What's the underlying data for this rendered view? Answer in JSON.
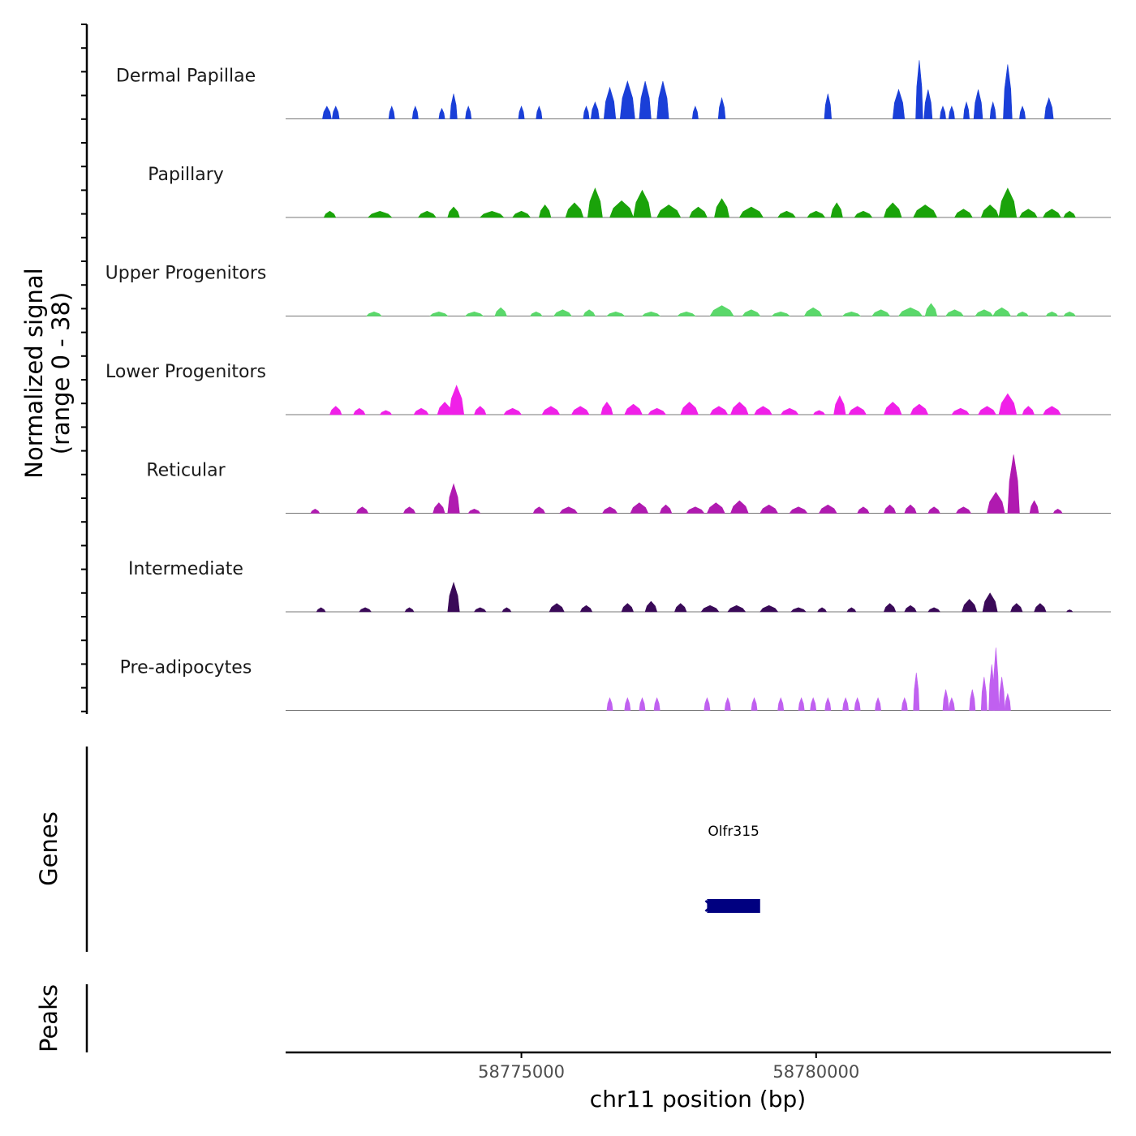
{
  "chart_data": {
    "type": "area",
    "title": "",
    "chromosome": "chr11",
    "xlabel": "chr11 position (bp)",
    "ylabel_line1": "Normalized signal",
    "ylabel_line2": "(range 0 - 38)",
    "ylim": [
      0,
      38
    ],
    "xlim": [
      58771000,
      58785000
    ],
    "x_ticks": [
      58775000,
      58780000
    ],
    "x_tick_labels": [
      "58775000",
      "58780000"
    ],
    "tracks": [
      {
        "name": "Dermal Papillae",
        "color": "#1a3fd8",
        "peaks": [
          [
            58771700,
            150,
            6
          ],
          [
            58771850,
            120,
            6
          ],
          [
            58772800,
            100,
            6
          ],
          [
            58773200,
            100,
            6
          ],
          [
            58773650,
            100,
            5
          ],
          [
            58773850,
            120,
            12
          ],
          [
            58774100,
            100,
            6
          ],
          [
            58775000,
            100,
            6
          ],
          [
            58775300,
            100,
            6
          ],
          [
            58776100,
            100,
            6
          ],
          [
            58776250,
            140,
            8
          ],
          [
            58776500,
            200,
            15
          ],
          [
            58776800,
            250,
            18
          ],
          [
            58777100,
            200,
            18
          ],
          [
            58777400,
            200,
            18
          ],
          [
            58777950,
            100,
            6
          ],
          [
            58778400,
            120,
            10
          ],
          [
            58780200,
            120,
            12
          ],
          [
            58781400,
            200,
            14
          ],
          [
            58781750,
            120,
            28
          ],
          [
            58781900,
            140,
            14
          ],
          [
            58782150,
            100,
            6
          ],
          [
            58782300,
            100,
            6
          ],
          [
            58782550,
            100,
            8
          ],
          [
            58782750,
            150,
            14
          ],
          [
            58783000,
            100,
            8
          ],
          [
            58783250,
            150,
            26
          ],
          [
            58783500,
            100,
            6
          ],
          [
            58783950,
            150,
            10
          ]
        ]
      },
      {
        "name": "Papillary",
        "color": "#1aa30a",
        "peaks": [
          [
            58771750,
            200,
            3
          ],
          [
            58772600,
            400,
            3
          ],
          [
            58773400,
            300,
            3
          ],
          [
            58773850,
            200,
            5
          ],
          [
            58774500,
            400,
            3
          ],
          [
            58775000,
            300,
            3
          ],
          [
            58775400,
            200,
            6
          ],
          [
            58775900,
            300,
            7
          ],
          [
            58776250,
            250,
            14
          ],
          [
            58776700,
            400,
            8
          ],
          [
            58777050,
            300,
            13
          ],
          [
            58777500,
            400,
            6
          ],
          [
            58778000,
            300,
            5
          ],
          [
            58778400,
            250,
            9
          ],
          [
            58778900,
            400,
            5
          ],
          [
            58779500,
            300,
            3
          ],
          [
            58780000,
            300,
            3
          ],
          [
            58780350,
            200,
            7
          ],
          [
            58780800,
            300,
            3
          ],
          [
            58781300,
            300,
            7
          ],
          [
            58781850,
            400,
            6
          ],
          [
            58782500,
            300,
            4
          ],
          [
            58782950,
            300,
            6
          ],
          [
            58783250,
            300,
            14
          ],
          [
            58783600,
            300,
            4
          ],
          [
            58784000,
            300,
            4
          ],
          [
            58784300,
            200,
            3
          ]
        ]
      },
      {
        "name": "Upper Progenitors",
        "color": "#5ad86a",
        "peaks": [
          [
            58772500,
            250,
            2
          ],
          [
            58773600,
            300,
            2
          ],
          [
            58774200,
            300,
            2
          ],
          [
            58774650,
            200,
            4
          ],
          [
            58775250,
            200,
            2
          ],
          [
            58775700,
            300,
            3
          ],
          [
            58776150,
            200,
            3
          ],
          [
            58776600,
            300,
            2
          ],
          [
            58777200,
            300,
            2
          ],
          [
            58777800,
            300,
            2
          ],
          [
            58778400,
            400,
            5
          ],
          [
            58778900,
            300,
            3
          ],
          [
            58779400,
            300,
            2
          ],
          [
            58779950,
            300,
            4
          ],
          [
            58780600,
            300,
            2
          ],
          [
            58781100,
            300,
            3
          ],
          [
            58781600,
            400,
            4
          ],
          [
            58781950,
            200,
            6
          ],
          [
            58782350,
            300,
            3
          ],
          [
            58782850,
            300,
            3
          ],
          [
            58783150,
            300,
            4
          ],
          [
            58783500,
            200,
            2
          ],
          [
            58784000,
            200,
            2
          ],
          [
            58784300,
            200,
            2
          ]
        ]
      },
      {
        "name": "Lower Progenitors",
        "color": "#f020e8",
        "peaks": [
          [
            58771850,
            200,
            4
          ],
          [
            58772250,
            200,
            3
          ],
          [
            58772700,
            200,
            2
          ],
          [
            58773300,
            250,
            3
          ],
          [
            58773700,
            250,
            6
          ],
          [
            58773900,
            250,
            14
          ],
          [
            58774300,
            200,
            4
          ],
          [
            58774850,
            300,
            3
          ],
          [
            58775500,
            300,
            4
          ],
          [
            58776000,
            300,
            4
          ],
          [
            58776450,
            200,
            6
          ],
          [
            58776900,
            300,
            5
          ],
          [
            58777300,
            300,
            3
          ],
          [
            58777850,
            300,
            6
          ],
          [
            58778350,
            300,
            4
          ],
          [
            58778700,
            300,
            6
          ],
          [
            58779100,
            300,
            4
          ],
          [
            58779550,
            300,
            3
          ],
          [
            58780050,
            200,
            2
          ],
          [
            58780400,
            200,
            9
          ],
          [
            58780700,
            300,
            4
          ],
          [
            58781300,
            300,
            6
          ],
          [
            58781750,
            300,
            5
          ],
          [
            58782450,
            300,
            3
          ],
          [
            58782900,
            300,
            4
          ],
          [
            58783250,
            300,
            10
          ],
          [
            58783600,
            200,
            4
          ],
          [
            58784000,
            300,
            4
          ]
        ]
      },
      {
        "name": "Reticular",
        "color": "#b01ab0",
        "peaks": [
          [
            58771500,
            150,
            2
          ],
          [
            58772300,
            200,
            3
          ],
          [
            58773100,
            200,
            3
          ],
          [
            58773600,
            200,
            5
          ],
          [
            58773850,
            200,
            14
          ],
          [
            58774200,
            200,
            2
          ],
          [
            58775300,
            200,
            3
          ],
          [
            58775800,
            300,
            3
          ],
          [
            58776500,
            250,
            3
          ],
          [
            58777000,
            300,
            5
          ],
          [
            58777450,
            200,
            4
          ],
          [
            58777950,
            300,
            3
          ],
          [
            58778300,
            300,
            5
          ],
          [
            58778700,
            300,
            6
          ],
          [
            58779200,
            300,
            4
          ],
          [
            58779700,
            300,
            3
          ],
          [
            58780200,
            300,
            4
          ],
          [
            58780800,
            200,
            3
          ],
          [
            58781250,
            200,
            4
          ],
          [
            58781600,
            200,
            4
          ],
          [
            58782000,
            200,
            3
          ],
          [
            58782500,
            250,
            3
          ],
          [
            58783050,
            300,
            10
          ],
          [
            58783350,
            200,
            28
          ],
          [
            58783700,
            150,
            6
          ],
          [
            58784100,
            150,
            2
          ]
        ]
      },
      {
        "name": "Intermediate",
        "color": "#3a0a58",
        "peaks": [
          [
            58771600,
            150,
            2
          ],
          [
            58772350,
            200,
            2
          ],
          [
            58773100,
            150,
            2
          ],
          [
            58773850,
            200,
            14
          ],
          [
            58774300,
            200,
            2
          ],
          [
            58774750,
            150,
            2
          ],
          [
            58775600,
            250,
            4
          ],
          [
            58776100,
            200,
            3
          ],
          [
            58776800,
            200,
            4
          ],
          [
            58777200,
            200,
            5
          ],
          [
            58777700,
            200,
            4
          ],
          [
            58778200,
            300,
            3
          ],
          [
            58778650,
            300,
            3
          ],
          [
            58779200,
            300,
            3
          ],
          [
            58779700,
            250,
            2
          ],
          [
            58780100,
            150,
            2
          ],
          [
            58780600,
            150,
            2
          ],
          [
            58781250,
            200,
            4
          ],
          [
            58781600,
            200,
            3
          ],
          [
            58782000,
            200,
            2
          ],
          [
            58782600,
            250,
            6
          ],
          [
            58782950,
            250,
            9
          ],
          [
            58783400,
            200,
            4
          ],
          [
            58783800,
            200,
            4
          ],
          [
            58784300,
            100,
            1
          ]
        ]
      },
      {
        "name": "Pre-adipocytes",
        "color": "#c060f0",
        "peaks": [
          [
            58776500,
            100,
            6
          ],
          [
            58776800,
            100,
            6
          ],
          [
            58777050,
            100,
            6
          ],
          [
            58777300,
            100,
            6
          ],
          [
            58778150,
            100,
            6
          ],
          [
            58778500,
            100,
            6
          ],
          [
            58778950,
            100,
            6
          ],
          [
            58779400,
            100,
            6
          ],
          [
            58779750,
            100,
            6
          ],
          [
            58779950,
            100,
            6
          ],
          [
            58780200,
            100,
            6
          ],
          [
            58780500,
            100,
            6
          ],
          [
            58780700,
            100,
            6
          ],
          [
            58781050,
            100,
            6
          ],
          [
            58781500,
            100,
            6
          ],
          [
            58781700,
            100,
            18
          ],
          [
            58782200,
            100,
            10
          ],
          [
            58782300,
            100,
            6
          ],
          [
            58782650,
            100,
            10
          ],
          [
            58782850,
            100,
            16
          ],
          [
            58782980,
            100,
            22
          ],
          [
            58783050,
            100,
            30
          ],
          [
            58783150,
            100,
            16
          ],
          [
            58783250,
            100,
            8
          ]
        ]
      }
    ],
    "genes": {
      "title": "Genes",
      "items": [
        {
          "name": "Olfr315",
          "start": 58778150,
          "end": 58779050,
          "strand": "-",
          "color": "#000080"
        }
      ]
    },
    "peaks_track": {
      "title": "Peaks",
      "items": []
    }
  }
}
